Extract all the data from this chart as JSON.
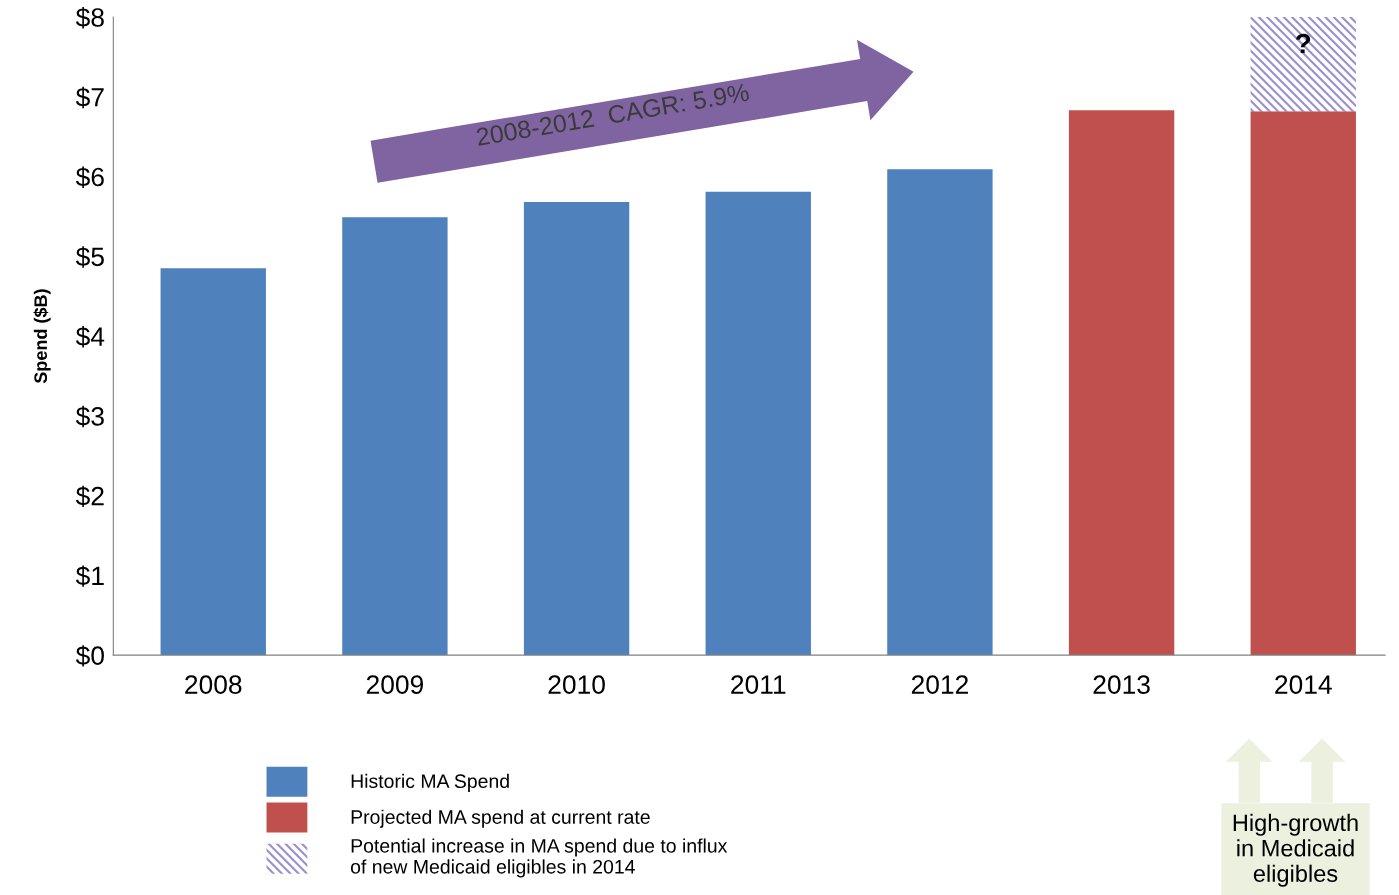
{
  "chart_data": {
    "type": "bar",
    "ylabel": "Spend ($B)",
    "categories": [
      "2008",
      "2009",
      "2010",
      "2011",
      "2012",
      "2013",
      "2014"
    ],
    "stacked": true,
    "series": [
      {
        "name": "Historic MA Spend",
        "color": "#4f81bd",
        "values": [
          4.85,
          5.49,
          5.68,
          5.81,
          6.09,
          null,
          null
        ]
      },
      {
        "name": "Projected MA spend at current rate",
        "color": "#c0504d",
        "values": [
          null,
          null,
          null,
          null,
          null,
          6.83,
          6.82
        ]
      },
      {
        "name": "Potential increase in MA spend due to influx\nof new Medicaid eligibles in 2014",
        "color": "#9a8fcf",
        "values": [
          null,
          null,
          null,
          null,
          null,
          null,
          1.18
        ]
      }
    ],
    "ylim": [
      0,
      8
    ],
    "yticks": [
      {
        "value": 0,
        "label": "$0"
      },
      {
        "value": 1,
        "label": "$1"
      },
      {
        "value": 2,
        "label": "$2"
      },
      {
        "value": 3,
        "label": "$3"
      },
      {
        "value": 4,
        "label": "$4"
      },
      {
        "value": 5,
        "label": "$5"
      },
      {
        "value": 6,
        "label": "$6"
      },
      {
        "value": 7,
        "label": "$7"
      },
      {
        "value": 8,
        "label": "$8"
      }
    ],
    "grid": false,
    "legend": "bottom",
    "annotations": [
      "2008-2012  CAGR: 5.9%",
      "?",
      "High-growth\nin Medicaid\neligibles"
    ]
  }
}
